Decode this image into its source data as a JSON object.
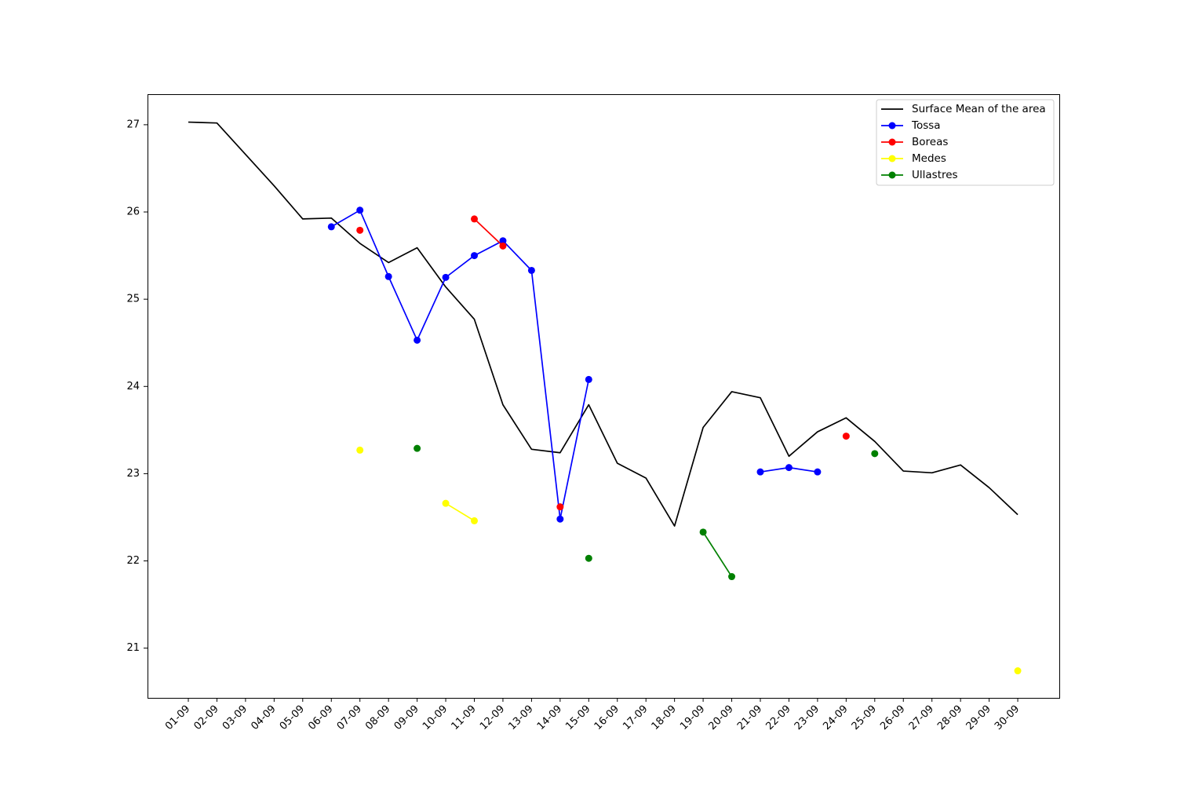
{
  "chart_data": {
    "type": "line",
    "title": "",
    "xlabel": "",
    "ylabel": "",
    "categories": [
      "01-09",
      "02-09",
      "03-09",
      "04-09",
      "05-09",
      "06-09",
      "07-09",
      "08-09",
      "09-09",
      "10-09",
      "11-09",
      "12-09",
      "13-09",
      "14-09",
      "15-09",
      "16-09",
      "17-09",
      "18-09",
      "19-09",
      "20-09",
      "21-09",
      "22-09",
      "23-09",
      "24-09",
      "25-09",
      "26-09",
      "27-09",
      "28-09",
      "29-09",
      "30-09"
    ],
    "yticks": [
      21,
      22,
      23,
      24,
      25,
      26,
      27
    ],
    "ylim": [
      20.43,
      27.35
    ],
    "grid": false,
    "legend_position": "top-right",
    "series": [
      {
        "name": "Surface Mean of the area",
        "color": "#000000",
        "marker": false,
        "values": [
          27.03,
          27.02,
          26.66,
          26.3,
          25.92,
          25.93,
          25.64,
          25.42,
          25.59,
          25.14,
          24.77,
          23.79,
          23.28,
          23.24,
          23.79,
          23.12,
          22.95,
          22.4,
          23.53,
          23.94,
          23.87,
          23.2,
          23.48,
          23.64,
          23.37,
          23.03,
          23.01,
          23.1,
          22.84,
          22.53
        ]
      },
      {
        "name": "Tossa",
        "color": "#0000ff",
        "marker": true,
        "values": [
          null,
          null,
          null,
          null,
          null,
          25.83,
          26.02,
          25.26,
          24.53,
          25.25,
          25.5,
          25.67,
          25.33,
          22.48,
          24.08,
          null,
          null,
          null,
          null,
          null,
          23.02,
          23.07,
          23.02,
          null,
          null,
          null,
          null,
          null,
          null,
          null
        ]
      },
      {
        "name": "Boreas",
        "color": "#ff0000",
        "marker": true,
        "values": [
          null,
          null,
          null,
          null,
          null,
          null,
          25.79,
          null,
          null,
          null,
          25.92,
          25.61,
          null,
          22.62,
          null,
          null,
          null,
          null,
          null,
          null,
          null,
          null,
          null,
          23.43,
          null,
          null,
          null,
          null,
          null,
          null
        ]
      },
      {
        "name": "Medes",
        "color": "#ffff00",
        "marker": true,
        "values": [
          null,
          null,
          null,
          null,
          null,
          null,
          23.27,
          null,
          null,
          22.66,
          22.46,
          null,
          null,
          null,
          null,
          null,
          null,
          null,
          null,
          null,
          null,
          null,
          null,
          null,
          null,
          null,
          null,
          null,
          null,
          20.74
        ]
      },
      {
        "name": "Ullastres",
        "color": "#008000",
        "marker": true,
        "values": [
          null,
          null,
          null,
          null,
          null,
          null,
          null,
          null,
          23.29,
          null,
          null,
          null,
          null,
          null,
          22.03,
          null,
          null,
          null,
          22.33,
          21.82,
          null,
          null,
          null,
          null,
          23.23,
          null,
          null,
          null,
          null,
          null
        ]
      }
    ]
  }
}
